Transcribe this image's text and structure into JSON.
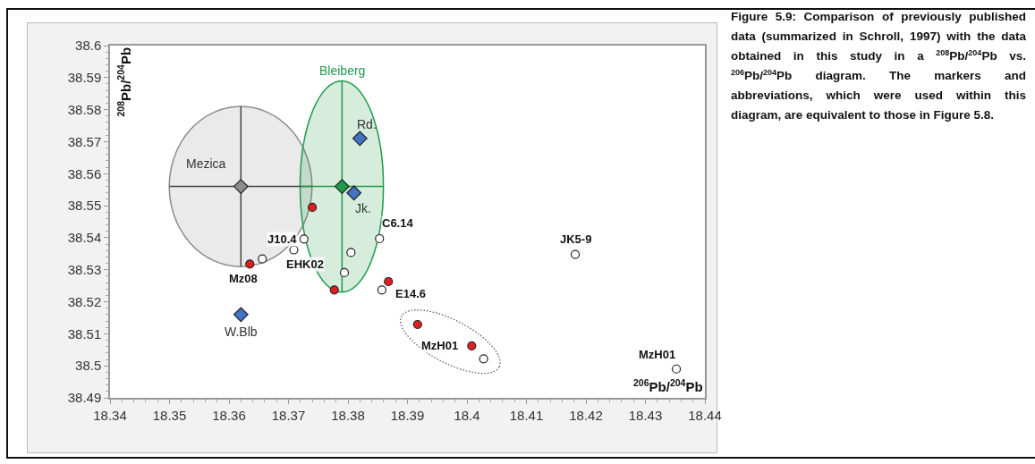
{
  "chart_data": {
    "type": "scatter",
    "xlim": [
      18.34,
      18.44
    ],
    "xticks": [
      18.34,
      18.35,
      18.36,
      18.37,
      18.38,
      18.39,
      18.4,
      18.41,
      18.42,
      18.43,
      18.44
    ],
    "ylim": [
      38.49,
      38.6
    ],
    "yticks": [
      38.49,
      38.5,
      38.51,
      38.52,
      38.53,
      38.54,
      38.55,
      38.56,
      38.57,
      38.58,
      38.59,
      38.6
    ],
    "xlabel": "$^{206}$Pb/$^{204}$Pb",
    "ylabel": "$^{208}$Pb/$^{204}$Pb",
    "grid": false,
    "legend": false,
    "series": [
      {
        "color": "#8c8c8c",
        "marker": "diamond",
        "x": [
          18.362
        ],
        "values": [
          38.556
        ],
        "errors": [
          [
            38.531,
            38.581
          ]
        ],
        "xerrors": [
          [
            18.35,
            18.374
          ]
        ]
      },
      {
        "color": "#1e9a4a",
        "marker": "diamond",
        "x": [
          18.379
        ],
        "values": [
          38.556
        ],
        "errors": [
          [
            38.523,
            38.589
          ]
        ],
        "xerrors": [
          [
            18.372,
            18.386
          ]
        ]
      },
      {
        "color": "#4472c4",
        "marker": "diamond",
        "x": [
          18.382,
          18.381,
          18.362
        ],
        "values": [
          38.571,
          38.554,
          38.516
        ]
      },
      {
        "color": "#e02020",
        "marker": "circle",
        "x": [
          18.374,
          18.3635,
          18.3777,
          18.3868,
          18.3917,
          18.4008
        ],
        "values": [
          38.5495,
          38.5318,
          38.5237,
          38.5263,
          38.5129,
          38.5062
        ]
      },
      {
        "color": "#ffffff",
        "marker": "circle",
        "x": [
          18.3656,
          18.3709,
          18.3726,
          18.3805,
          18.3794,
          18.3853,
          18.3857,
          18.4028,
          18.4182,
          18.4352
        ],
        "values": [
          38.5334,
          38.5362,
          38.5396,
          38.5354,
          38.5291,
          38.5397,
          38.5237,
          38.5022,
          38.5348,
          38.499
        ]
      }
    ],
    "annotations": [
      {
        "text": "Mezica",
        "x": 18.362,
        "y": 38.556
      },
      {
        "text": "Bleiberg",
        "x": 18.379,
        "y": 38.589
      },
      {
        "text": "Rd.",
        "x": 18.382,
        "y": 38.571
      },
      {
        "text": "Jk.",
        "x": 18.381,
        "y": 38.554
      },
      {
        "text": "W.Blb",
        "x": 18.362,
        "y": 38.516
      },
      {
        "text": "J10.4",
        "x": 18.374,
        "y": 38.5495
      },
      {
        "text": "Mz08",
        "x": 18.3635,
        "y": 38.5318
      },
      {
        "text": "EHK02",
        "x": 18.3794,
        "y": 38.5291
      },
      {
        "text": "C6.14",
        "x": 18.3853,
        "y": 38.5397
      },
      {
        "text": "E14.6",
        "x": 18.3868,
        "y": 38.5263
      },
      {
        "text": "MzH01",
        "x": 18.4008,
        "y": 38.5062
      },
      {
        "text": "JK5-9",
        "x": 18.4182,
        "y": 38.5348
      },
      {
        "text": "MzH01",
        "x": 18.4352,
        "y": 38.499
      },
      "Figure 5.9: Comparison of previously published data (summarized in Schroll, 1997) with the data obtained in this study in a $^{208}$Pb/$^{204}$Pb vs. $^{206}$Pb/$^{204}$Pb diagram. The markers and abbreviations, which were used within this diagram, are equivalent to those in Figure 5.8."
    ]
  }
}
